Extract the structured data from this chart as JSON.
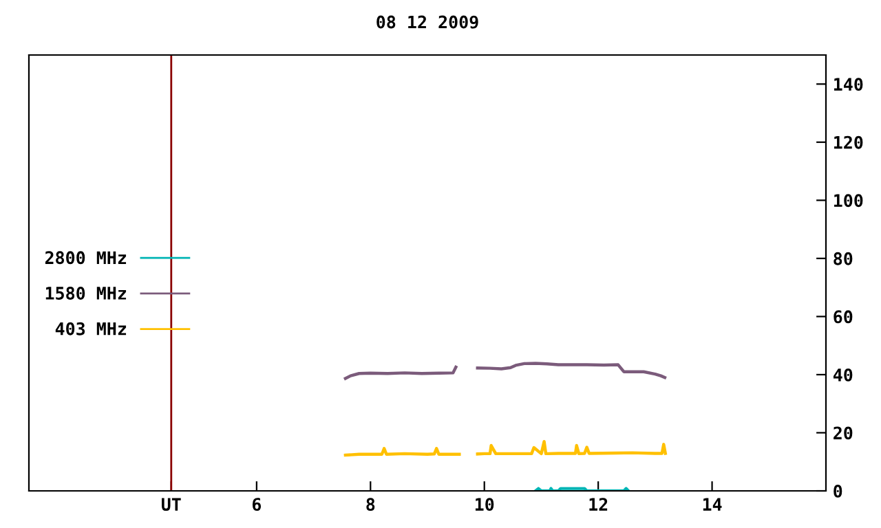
{
  "chart_data": {
    "type": "line",
    "title": "08 12 2009",
    "xlim": [
      2,
      16
    ],
    "xticks": [
      {
        "value": 4.5,
        "label": "UT"
      },
      6,
      8,
      10,
      12,
      14
    ],
    "ylim": [
      0,
      150
    ],
    "yticks": [
      0,
      20,
      40,
      60,
      80,
      100,
      120,
      140
    ],
    "grid": false,
    "legend": "left",
    "marker": "none",
    "line_style": "solid",
    "ref_lines": [
      {
        "axis": "x",
        "value": 4.5,
        "label": null,
        "color": "#8b0000"
      }
    ],
    "series": [
      {
        "name": "2800 MHz",
        "color": "#00b4b4",
        "x": [
          10.9,
          10.95,
          11.0,
          11.15,
          11.17,
          11.2,
          11.3,
          11.34,
          11.5,
          11.76,
          11.8,
          12.45,
          12.49,
          12.53
        ],
        "values": [
          0,
          0.8,
          0,
          0,
          0.8,
          0,
          0,
          0.8,
          0.8,
          0.8,
          0,
          0,
          0.8,
          0
        ]
      },
      {
        "name": "1580 MHz",
        "color": "#7b5b7b",
        "x": [
          7.56,
          7.65,
          7.8,
          8.0,
          8.3,
          8.6,
          8.9,
          9.2,
          9.45,
          9.5,
          9.55,
          9.75,
          9.88,
          10.1,
          10.3,
          10.46,
          10.55,
          10.7,
          10.9,
          11.1,
          11.3,
          11.5,
          11.8,
          12.1,
          12.35,
          12.45,
          12.5,
          12.8,
          13.0,
          13.1,
          13.17
        ],
        "values": [
          38.7,
          39.6,
          40.4,
          40.5,
          40.4,
          40.6,
          40.4,
          40.5,
          40.6,
          42.6,
          null,
          null,
          42.3,
          42.2,
          42.0,
          42.4,
          43.2,
          43.8,
          43.9,
          43.7,
          43.4,
          43.4,
          43.4,
          43.3,
          43.4,
          41.0,
          41.0,
          41.0,
          40.2,
          39.6,
          39.0
        ]
      },
      {
        "name": "403 MHz",
        "color": "#ffc000",
        "x": [
          7.56,
          7.8,
          8.2,
          8.24,
          8.28,
          8.6,
          9.0,
          9.12,
          9.16,
          9.2,
          9.56,
          9.7,
          9.88,
          10.0,
          10.1,
          10.12,
          10.2,
          10.6,
          10.83,
          10.87,
          11.0,
          11.05,
          11.08,
          11.11,
          11.3,
          11.6,
          11.62,
          11.66,
          11.76,
          11.8,
          11.84,
          12.3,
          12.6,
          13.0,
          13.12,
          13.15,
          13.18
        ],
        "values": [
          12.3,
          12.6,
          12.6,
          14.6,
          12.6,
          12.8,
          12.6,
          12.7,
          14.6,
          12.6,
          12.6,
          null,
          12.7,
          12.8,
          12.8,
          15.6,
          12.8,
          12.8,
          12.8,
          14.9,
          12.8,
          17.0,
          12.8,
          12.8,
          12.9,
          12.9,
          15.6,
          12.8,
          12.9,
          15.0,
          12.9,
          13.0,
          13.1,
          12.9,
          12.9,
          16.0,
          12.9
        ]
      }
    ]
  }
}
